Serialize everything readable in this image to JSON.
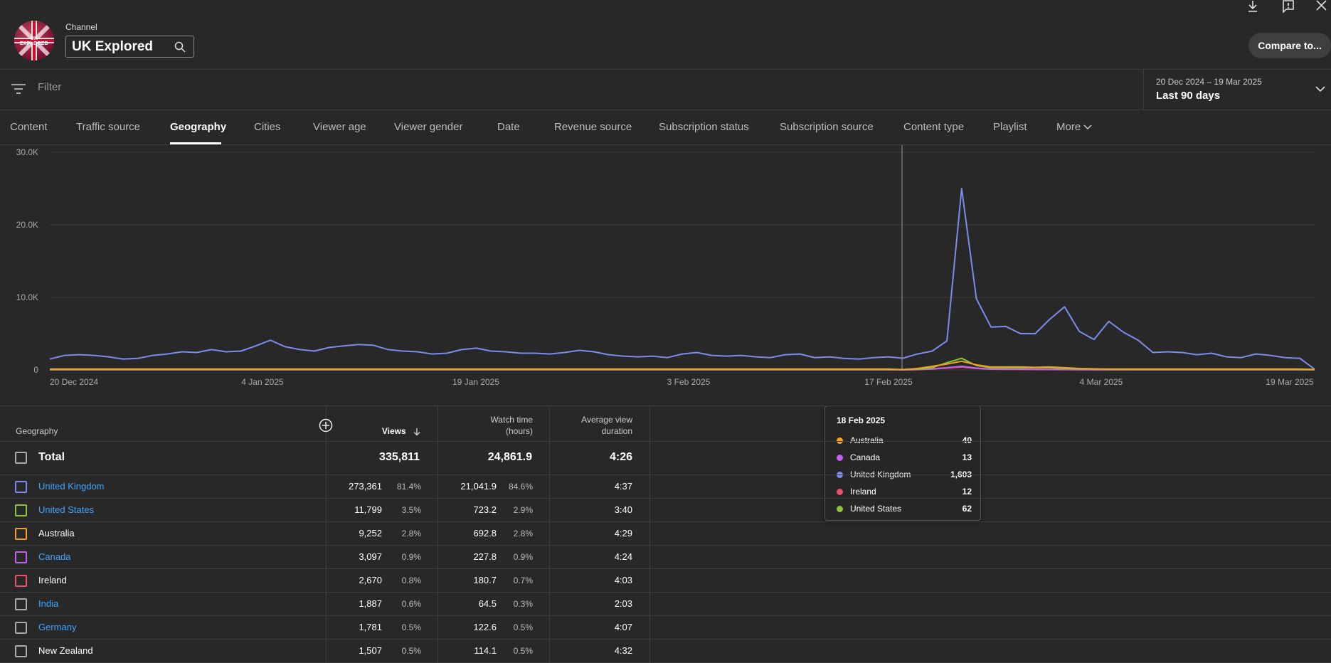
{
  "header": {
    "channel_label": "Channel",
    "channel_name": "UK Explored",
    "avatar_text": "UK EXPLORED",
    "compare_label": "Compare to..."
  },
  "filter": {
    "placeholder": "Filter",
    "date_range": "20 Dec 2024 – 19 Mar 2025",
    "date_label": "Last 90 days"
  },
  "tabs": [
    {
      "label": "Content"
    },
    {
      "label": "Traffic source"
    },
    {
      "label": "Geography",
      "active": true
    },
    {
      "label": "Cities"
    },
    {
      "label": "Viewer age"
    },
    {
      "label": "Viewer gender"
    },
    {
      "label": "Date"
    },
    {
      "label": "Revenue source"
    },
    {
      "label": "Subscription status"
    },
    {
      "label": "Subscription source"
    },
    {
      "label": "Content type"
    },
    {
      "label": "Playlist"
    },
    {
      "label": "More"
    }
  ],
  "chart_data": {
    "type": "line",
    "y_ticks": [
      "0",
      "10.0K",
      "20.0K",
      "30.0K"
    ],
    "x_ticks": [
      "20 Dec 2024",
      "4 Jan 2025",
      "19 Jan 2025",
      "3 Feb 2025",
      "17 Feb 2025",
      "4 Mar 2025",
      "19 Mar 2025"
    ],
    "ylim": [
      0,
      30000
    ],
    "colors": {
      "United Kingdom": "#7b8cec",
      "United States": "#8bc33f",
      "Australia": "#f2a31b",
      "Canada": "#c061f0",
      "Ireland": "#e8526b"
    },
    "series": [
      {
        "name": "United Kingdom",
        "values": [
          1500,
          2000,
          2100,
          2000,
          1800,
          1500,
          1600,
          2000,
          2200,
          2500,
          2400,
          2800,
          2500,
          2600,
          3300,
          4100,
          3200,
          2800,
          2600,
          3100,
          3300,
          3500,
          3400,
          2800,
          2600,
          2500,
          2200,
          2300,
          2800,
          3000,
          2600,
          2500,
          2300,
          2300,
          2200,
          2400,
          2700,
          2500,
          2100,
          1900,
          1800,
          1900,
          1700,
          2200,
          2400,
          2000,
          1900,
          2000,
          1800,
          1700,
          2100,
          2200,
          1700,
          1800,
          1600,
          1500,
          1700,
          1800,
          1603,
          2200,
          2600,
          4000,
          25000,
          9800,
          5900,
          6000,
          5000,
          5000,
          7000,
          8700,
          5300,
          4200,
          6700,
          5200,
          4100,
          2400,
          2500,
          2400,
          2100,
          2300,
          1800,
          1700,
          2200,
          2000,
          1700,
          1600,
          100
        ]
      },
      {
        "name": "United States",
        "values": [
          60,
          60,
          60,
          60,
          60,
          60,
          60,
          60,
          60,
          60,
          60,
          60,
          60,
          60,
          60,
          60,
          60,
          60,
          60,
          60,
          60,
          60,
          60,
          60,
          60,
          60,
          60,
          60,
          60,
          60,
          60,
          60,
          60,
          60,
          60,
          60,
          60,
          60,
          60,
          60,
          60,
          60,
          60,
          60,
          60,
          60,
          60,
          60,
          60,
          60,
          60,
          60,
          60,
          60,
          60,
          60,
          60,
          60,
          62,
          100,
          300,
          1000,
          1600,
          600,
          300,
          300,
          300,
          300,
          300,
          200,
          150,
          100,
          80,
          70,
          60,
          60,
          60,
          60,
          60,
          60,
          60,
          60,
          60,
          60,
          60,
          60,
          40
        ]
      },
      {
        "name": "Australia",
        "values": [
          120,
          120,
          120,
          120,
          120,
          120,
          120,
          120,
          120,
          120,
          120,
          120,
          120,
          120,
          120,
          120,
          120,
          120,
          120,
          120,
          120,
          120,
          120,
          120,
          120,
          120,
          120,
          120,
          120,
          120,
          120,
          120,
          120,
          120,
          120,
          120,
          120,
          120,
          120,
          120,
          120,
          120,
          120,
          120,
          120,
          120,
          120,
          120,
          120,
          120,
          120,
          120,
          120,
          120,
          120,
          120,
          120,
          120,
          40,
          200,
          500,
          800,
          1200,
          700,
          400,
          400,
          400,
          350,
          400,
          300,
          200,
          150,
          120,
          120,
          120,
          120,
          120,
          120,
          120,
          120,
          120,
          120,
          120,
          120,
          120,
          120,
          60
        ]
      },
      {
        "name": "Canada",
        "values": [
          30,
          30,
          30,
          30,
          30,
          30,
          30,
          30,
          30,
          30,
          30,
          30,
          30,
          30,
          30,
          30,
          30,
          30,
          30,
          30,
          30,
          30,
          30,
          30,
          30,
          30,
          30,
          30,
          30,
          30,
          30,
          30,
          30,
          30,
          30,
          30,
          30,
          30,
          30,
          30,
          30,
          30,
          30,
          30,
          30,
          30,
          30,
          30,
          30,
          30,
          30,
          30,
          30,
          30,
          30,
          30,
          30,
          30,
          13,
          50,
          150,
          300,
          500,
          250,
          120,
          100,
          100,
          80,
          60,
          50,
          40,
          30,
          30,
          30,
          30,
          30,
          30,
          30,
          30,
          30,
          30,
          30,
          30,
          30,
          30,
          30,
          20
        ]
      },
      {
        "name": "Ireland",
        "values": [
          25,
          25,
          25,
          25,
          25,
          25,
          25,
          25,
          25,
          25,
          25,
          25,
          25,
          25,
          25,
          25,
          25,
          25,
          25,
          25,
          25,
          25,
          25,
          25,
          25,
          25,
          25,
          25,
          25,
          25,
          25,
          25,
          25,
          25,
          25,
          25,
          25,
          25,
          25,
          25,
          25,
          25,
          25,
          25,
          25,
          25,
          25,
          25,
          25,
          25,
          25,
          25,
          25,
          25,
          25,
          25,
          25,
          25,
          12,
          40,
          120,
          250,
          400,
          200,
          100,
          80,
          80,
          60,
          50,
          40,
          30,
          25,
          25,
          25,
          25,
          25,
          25,
          25,
          25,
          25,
          25,
          25,
          25,
          25,
          25,
          25,
          15
        ]
      }
    ]
  },
  "tooltip": {
    "date": "18 Feb 2025",
    "rows": [
      {
        "name": "Australia",
        "value": "40",
        "color": "#f2a31b"
      },
      {
        "name": "Canada",
        "value": "13",
        "color": "#c061f0"
      },
      {
        "name": "United Kingdom",
        "value": "1,603",
        "color": "#7b8cec"
      },
      {
        "name": "Ireland",
        "value": "12",
        "color": "#e8526b"
      },
      {
        "name": "United States",
        "value": "62",
        "color": "#8bc33f"
      }
    ]
  },
  "table": {
    "headers": {
      "geography": "Geography",
      "views": "Views",
      "watch_time_1": "Watch time",
      "watch_time_2": "(hours)",
      "avd_1": "Average view",
      "avd_2": "duration"
    },
    "total": {
      "label": "Total",
      "views": "335,811",
      "watch": "24,861.9",
      "avd": "4:26"
    },
    "rows": [
      {
        "name": "United Kingdom",
        "link": true,
        "color": "#7b8cec",
        "views": "273,361",
        "views_pct": "81.4%",
        "watch": "21,041.9",
        "watch_pct": "84.6%",
        "avd": "4:37"
      },
      {
        "name": "United States",
        "link": true,
        "color": "#8bc33f",
        "views": "11,799",
        "views_pct": "3.5%",
        "watch": "723.2",
        "watch_pct": "2.9%",
        "avd": "3:40"
      },
      {
        "name": "Australia",
        "link": false,
        "color": "#f2a31b",
        "views": "9,252",
        "views_pct": "2.8%",
        "watch": "692.8",
        "watch_pct": "2.8%",
        "avd": "4:29"
      },
      {
        "name": "Canada",
        "link": true,
        "color": "#c061f0",
        "views": "3,097",
        "views_pct": "0.9%",
        "watch": "227.8",
        "watch_pct": "0.9%",
        "avd": "4:24"
      },
      {
        "name": "Ireland",
        "link": false,
        "color": "#e8526b",
        "views": "2,670",
        "views_pct": "0.8%",
        "watch": "180.7",
        "watch_pct": "0.7%",
        "avd": "4:03"
      },
      {
        "name": "India",
        "link": true,
        "color": "#aaaaaa",
        "views": "1,887",
        "views_pct": "0.6%",
        "watch": "64.5",
        "watch_pct": "0.3%",
        "avd": "2:03"
      },
      {
        "name": "Germany",
        "link": true,
        "color": "#aaaaaa",
        "views": "1,781",
        "views_pct": "0.5%",
        "watch": "122.6",
        "watch_pct": "0.5%",
        "avd": "4:07"
      },
      {
        "name": "New Zealand",
        "link": false,
        "color": "#aaaaaa",
        "views": "1,507",
        "views_pct": "0.5%",
        "watch": "114.1",
        "watch_pct": "0.5%",
        "avd": "4:32"
      }
    ]
  }
}
